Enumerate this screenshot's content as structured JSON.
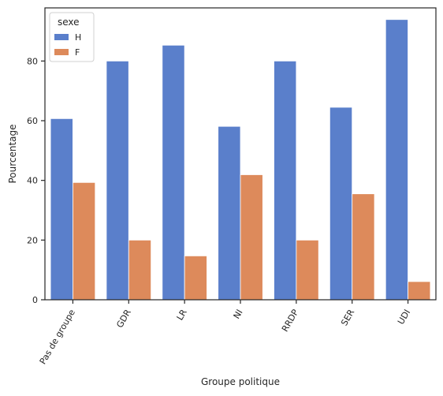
{
  "chart_data": {
    "type": "bar",
    "xlabel": "Groupe politique",
    "ylabel": "Pourcentage",
    "categories": [
      "Pas de groupe",
      "GDR",
      "LR",
      "NI",
      "RRDP",
      "SER",
      "UDI"
    ],
    "series": [
      {
        "name": "H",
        "color": "#5a7fcb",
        "values": [
          60.7,
          80.0,
          85.3,
          58.1,
          80.0,
          64.5,
          93.9
        ]
      },
      {
        "name": "F",
        "color": "#dd8a5b",
        "values": [
          39.3,
          20.0,
          14.7,
          41.9,
          20.0,
          35.5,
          6.1
        ]
      }
    ],
    "ylim": [
      0,
      97.8
    ],
    "yticks": [
      0,
      20,
      40,
      60,
      80
    ],
    "ytick_labels": [
      "0",
      "20",
      "40",
      "60",
      "80"
    ],
    "legend": {
      "title": "sexe",
      "placement": "top-left"
    },
    "grid": false
  }
}
